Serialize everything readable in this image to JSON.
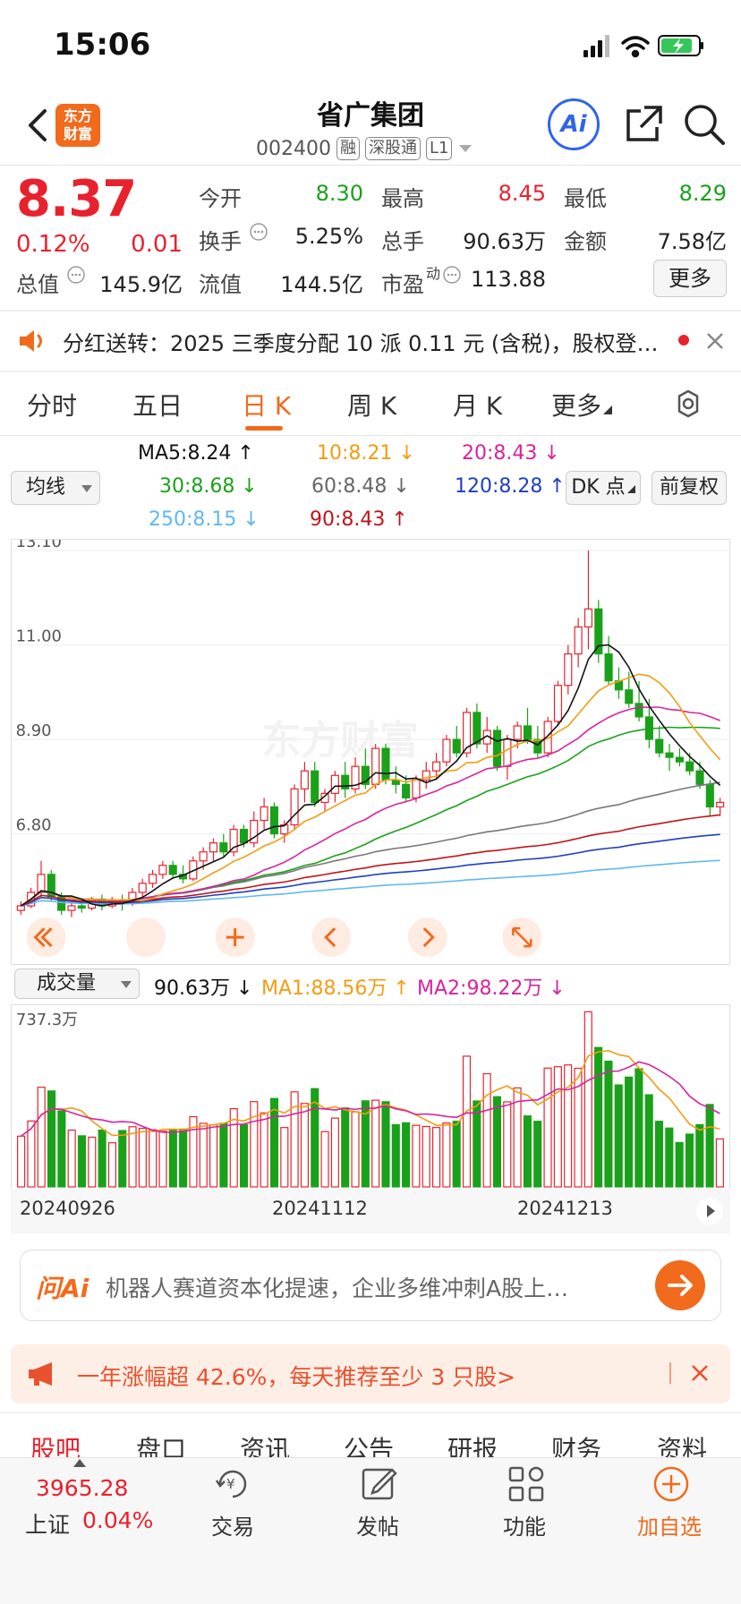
{
  "status": {
    "time": "15:06"
  },
  "header": {
    "logo_text_1": "东方",
    "logo_text_2": "财富",
    "stock_name": "省广集团",
    "stock_code": "002400",
    "tags": [
      "融",
      "深股通",
      "L1"
    ],
    "ai_label": "Ai"
  },
  "quote": {
    "price": "8.37",
    "change_pct": "0.12%",
    "change": "0.01",
    "fields": {
      "open_label": "今开",
      "open": "8.30",
      "high_label": "最高",
      "high": "8.45",
      "low_label": "最低",
      "low": "8.29",
      "turnover_label": "换手",
      "turnover": "5.25%",
      "volume_label": "总手",
      "volume": "90.63万",
      "amount_label": "金额",
      "amount": "7.58亿",
      "mktcap_label": "总值",
      "mktcap": "145.9亿",
      "float_label": "流值",
      "float": "144.5亿",
      "pe_label": "市盈",
      "pe_sup": "动",
      "pe": "113.88"
    },
    "more_label": "更多"
  },
  "notice": {
    "text": "分红送转：2025 三季度分配 10 派 0.11 元 (含税)，股权登…"
  },
  "tabs": [
    "分时",
    "五日",
    "日 K",
    "周 K",
    "月 K",
    "更多"
  ],
  "ma_legend": {
    "selector": "均线",
    "ma5": "MA5:8.24",
    "ma10": "10:8.21",
    "ma20": "20:8.43",
    "ma30": "30:8.68",
    "ma60": "60:8.48",
    "ma120": "120:8.28",
    "ma250": "250:8.15",
    "ma90": "90:8.43",
    "dk_label": "DK 点",
    "adjust_label": "前复权"
  },
  "chart_data": {
    "type": "candlestick",
    "y_ticks": [
      "13.10",
      "11.00",
      "8.90",
      "6.80"
    ],
    "ylim": [
      4.7,
      13.1
    ],
    "x_labels": [
      "20240926",
      "20241112",
      "20241213"
    ],
    "watermark": "东方财富",
    "candles": [
      [
        5.1,
        5.3,
        5.0,
        5.2
      ],
      [
        5.2,
        5.6,
        5.15,
        5.5
      ],
      [
        5.5,
        6.2,
        5.4,
        5.9
      ],
      [
        5.9,
        6.0,
        5.3,
        5.4
      ],
      [
        5.4,
        5.5,
        5.0,
        5.1
      ],
      [
        5.1,
        5.3,
        4.95,
        5.2
      ],
      [
        5.2,
        5.35,
        5.05,
        5.15
      ],
      [
        5.15,
        5.4,
        5.1,
        5.35
      ],
      [
        5.35,
        5.45,
        5.1,
        5.2
      ],
      [
        5.2,
        5.4,
        5.15,
        5.3
      ],
      [
        5.3,
        5.45,
        5.1,
        5.25
      ],
      [
        5.25,
        5.6,
        5.2,
        5.5
      ],
      [
        5.5,
        5.8,
        5.4,
        5.7
      ],
      [
        5.7,
        6.0,
        5.6,
        5.9
      ],
      [
        5.9,
        6.2,
        5.8,
        6.1
      ],
      [
        6.1,
        6.2,
        5.8,
        5.9
      ],
      [
        5.9,
        6.1,
        5.7,
        5.8
      ],
      [
        5.8,
        6.3,
        5.75,
        6.2
      ],
      [
        6.2,
        6.5,
        6.0,
        6.4
      ],
      [
        6.4,
        6.7,
        6.2,
        6.6
      ],
      [
        6.6,
        6.8,
        6.3,
        6.4
      ],
      [
        6.4,
        7.0,
        6.3,
        6.9
      ],
      [
        6.9,
        7.0,
        6.5,
        6.6
      ],
      [
        6.6,
        7.3,
        6.5,
        7.1
      ],
      [
        7.1,
        7.6,
        6.9,
        7.4
      ],
      [
        7.4,
        7.5,
        6.7,
        6.8
      ],
      [
        6.8,
        7.1,
        6.6,
        7.0
      ],
      [
        7.0,
        7.9,
        6.9,
        7.8
      ],
      [
        7.8,
        8.4,
        7.5,
        8.2
      ],
      [
        8.2,
        8.4,
        7.4,
        7.5
      ],
      [
        7.5,
        7.8,
        7.3,
        7.7
      ],
      [
        7.7,
        8.2,
        7.5,
        8.1
      ],
      [
        8.1,
        8.4,
        7.6,
        7.8
      ],
      [
        7.8,
        8.5,
        7.7,
        8.3
      ],
      [
        8.3,
        8.7,
        7.8,
        7.9
      ],
      [
        7.9,
        8.8,
        7.8,
        8.7
      ],
      [
        8.7,
        8.8,
        7.9,
        8.0
      ],
      [
        8.0,
        8.3,
        7.7,
        7.9
      ],
      [
        7.9,
        8.1,
        7.5,
        7.6
      ],
      [
        7.6,
        8.1,
        7.5,
        8.0
      ],
      [
        8.0,
        8.4,
        7.8,
        8.2
      ],
      [
        8.2,
        8.6,
        8.0,
        8.4
      ],
      [
        8.4,
        9.0,
        8.3,
        8.9
      ],
      [
        8.9,
        9.2,
        8.5,
        8.6
      ],
      [
        8.6,
        9.6,
        8.5,
        9.5
      ],
      [
        9.5,
        9.7,
        8.7,
        8.8
      ],
      [
        8.8,
        9.4,
        8.6,
        9.1
      ],
      [
        9.1,
        9.2,
        8.2,
        8.3
      ],
      [
        8.3,
        9.0,
        8.0,
        8.9
      ],
      [
        8.9,
        9.3,
        8.7,
        9.2
      ],
      [
        9.2,
        9.6,
        8.8,
        8.9
      ],
      [
        8.9,
        9.2,
        8.5,
        8.6
      ],
      [
        8.6,
        9.4,
        8.5,
        9.3
      ],
      [
        9.3,
        10.2,
        9.2,
        10.1
      ],
      [
        10.1,
        11.0,
        9.9,
        10.8
      ],
      [
        10.8,
        11.6,
        10.5,
        11.4
      ],
      [
        11.4,
        13.1,
        10.9,
        11.8
      ],
      [
        11.8,
        12.0,
        10.6,
        10.8
      ],
      [
        10.8,
        11.2,
        10.1,
        10.2
      ],
      [
        10.2,
        10.5,
        9.8,
        10.0
      ],
      [
        10.0,
        10.4,
        9.6,
        9.7
      ],
      [
        9.7,
        10.2,
        9.3,
        9.4
      ],
      [
        9.4,
        9.8,
        8.7,
        8.9
      ],
      [
        8.9,
        9.2,
        8.5,
        8.6
      ],
      [
        8.6,
        8.8,
        8.2,
        8.5
      ],
      [
        8.5,
        8.7,
        8.3,
        8.4
      ],
      [
        8.4,
        8.6,
        8.1,
        8.2
      ],
      [
        8.2,
        8.4,
        7.8,
        7.9
      ],
      [
        7.9,
        8.0,
        7.2,
        7.4
      ],
      [
        7.4,
        7.6,
        7.2,
        7.5
      ]
    ],
    "volume": {
      "selector": "成交量",
      "current": "90.63万",
      "ma1": "MA1:88.56万",
      "ma2": "MA2:98.22万",
      "max_label": "737.3万",
      "max": 737.3
    }
  },
  "ai_bar": {
    "logo": "问Ai",
    "text": "机器人赛道资本化提速，企业多维冲刺A股上…"
  },
  "promo": {
    "text": "一年涨幅超 42.6%，每天推荐至少 3 只股>"
  },
  "bottom_tabs": [
    "股吧",
    "盘口",
    "资讯",
    "公告",
    "研报",
    "财务",
    "资料"
  ],
  "nav": {
    "index_value": "3965.28",
    "index_name": "上证",
    "index_pct": "0.04%",
    "trade": "交易",
    "post": "发帖",
    "func": "功能",
    "add": "加自选"
  },
  "colors": {
    "up": "#e8222d",
    "down": "#1aa11a",
    "accent": "#f26a1b"
  }
}
